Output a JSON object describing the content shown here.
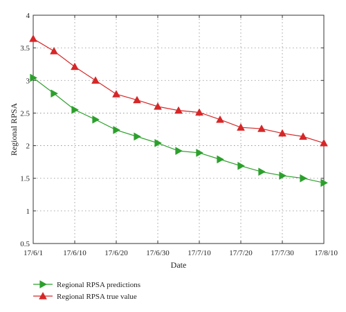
{
  "chart_data": {
    "type": "line",
    "xlabel": "Date",
    "ylabel": "Regional RPSA",
    "ylim": [
      0.5,
      4
    ],
    "yticks": [
      0.5,
      1,
      1.5,
      2,
      2.5,
      3,
      3.5,
      4
    ],
    "ytick_labels": [
      "0.5",
      "1",
      "1.5",
      "2",
      "2.5",
      "3",
      "3.5",
      "4"
    ],
    "xticks": [
      "17/6/1",
      "17/6/10",
      "17/6/20",
      "17/6/30",
      "17/7/10",
      "17/7/20",
      "17/7/30",
      "17/8/10"
    ],
    "x": [
      "17/6/1",
      "17/6/5",
      "17/6/10",
      "17/6/15",
      "17/6/20",
      "17/6/25",
      "17/6/30",
      "17/7/5",
      "17/7/10",
      "17/7/15",
      "17/7/20",
      "17/7/25",
      "17/7/30",
      "17/8/5",
      "17/8/10"
    ],
    "grid": true,
    "legend_position": "bottom-left",
    "series": [
      {
        "name": "Regional RPSA predictions",
        "color": "#2ca02c",
        "marker": "triangle-right",
        "values": [
          3.04,
          2.8,
          2.55,
          2.4,
          2.24,
          2.14,
          2.04,
          1.92,
          1.89,
          1.79,
          1.69,
          1.6,
          1.54,
          1.5,
          1.43
        ]
      },
      {
        "name": "Regional RPSA true value",
        "color": "#d62728",
        "marker": "triangle-up",
        "values": [
          3.64,
          3.45,
          3.21,
          3.0,
          2.79,
          2.7,
          2.6,
          2.54,
          2.51,
          2.4,
          2.28,
          2.26,
          2.19,
          2.14,
          2.04
        ]
      }
    ]
  }
}
